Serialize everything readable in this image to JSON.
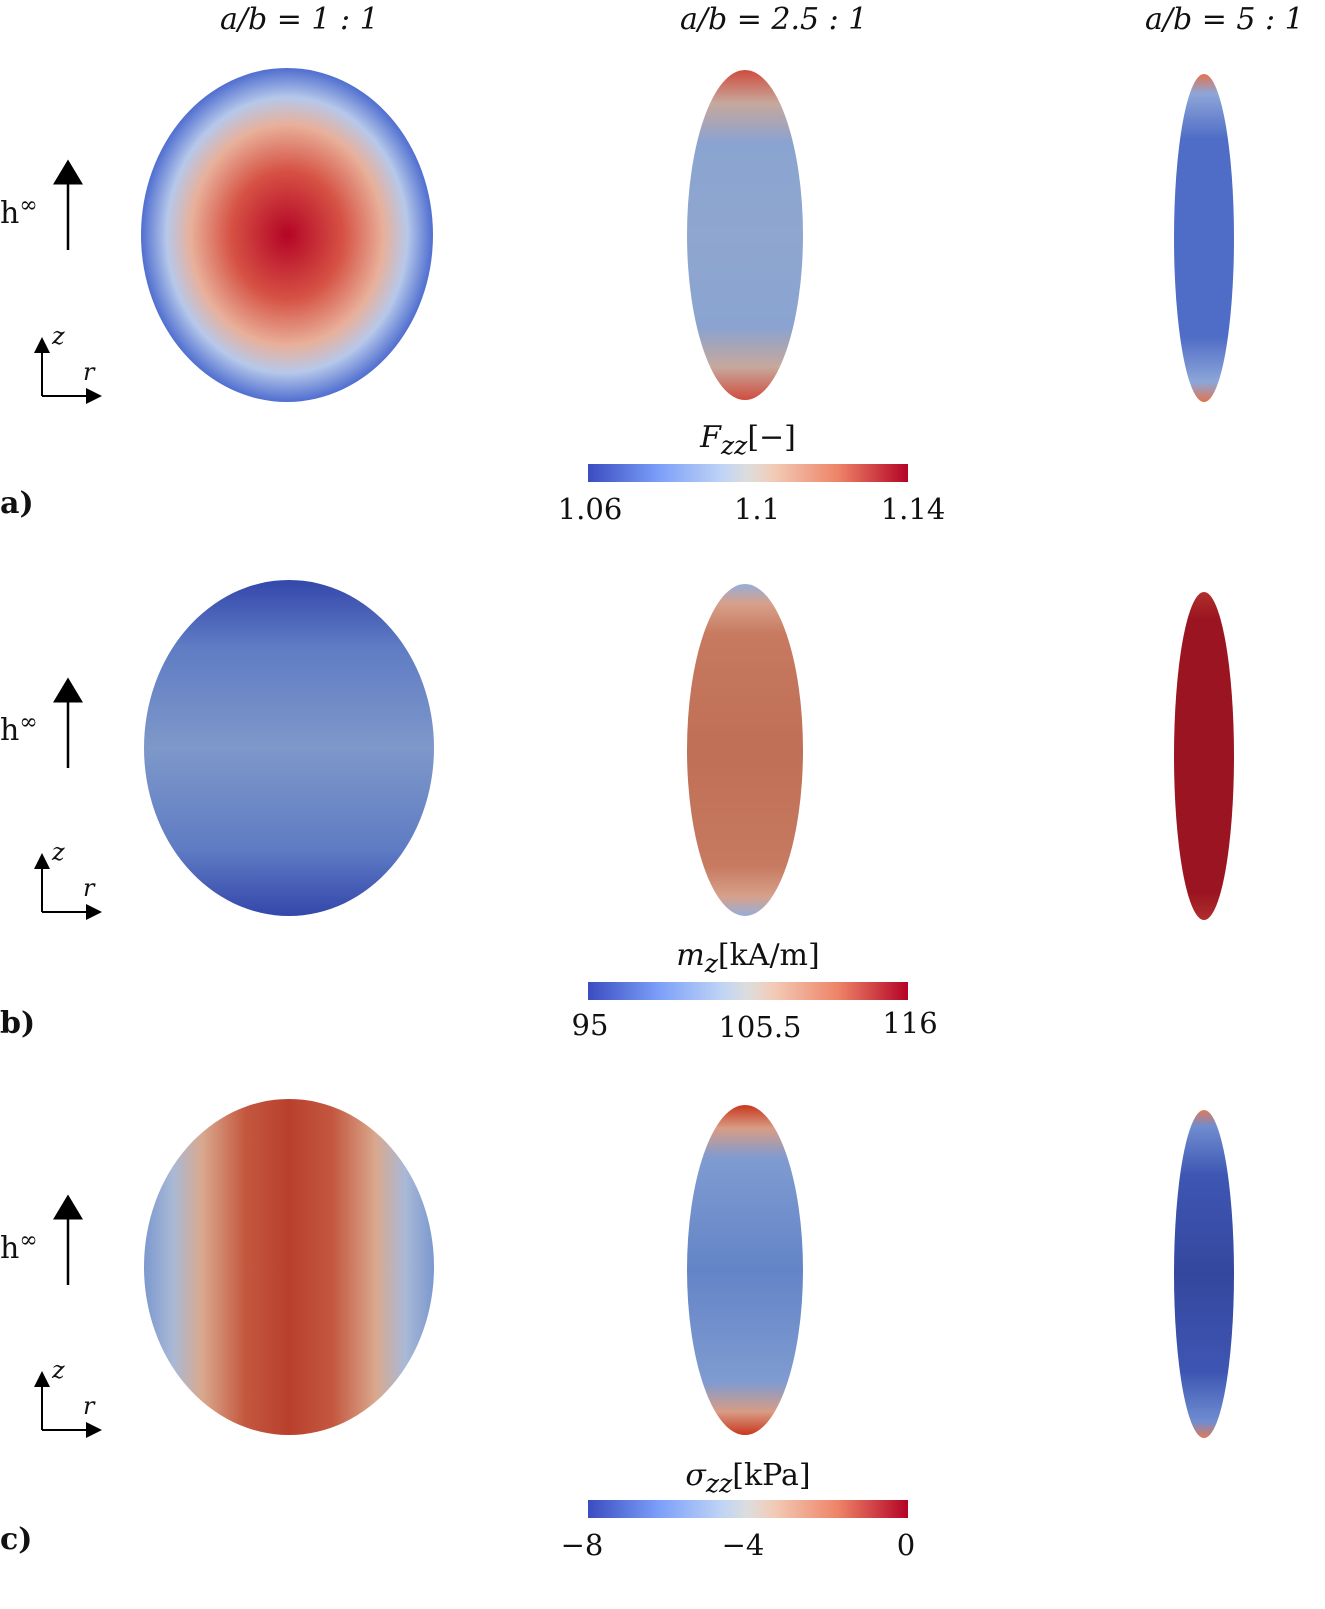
{
  "columns": [
    "a/b = 1 : 1",
    "a/b = 2.5 : 1",
    "a/b = 5 : 1"
  ],
  "field_label": "h",
  "field_superscript": "∞",
  "axis_z": "z",
  "axis_r": "r",
  "panels": [
    {
      "letter": "a)",
      "quantity": "F",
      "subscript": "zz",
      "unit": "[−]",
      "ticks": [
        "1.06",
        "1.1",
        "1.14"
      ]
    },
    {
      "letter": "b)",
      "quantity": "m",
      "subscript": "z",
      "unit": "[kA/m]",
      "ticks": [
        "95",
        "105.5",
        "116"
      ]
    },
    {
      "letter": "c)",
      "quantity": "σ",
      "subscript": "zz",
      "unit": "[kPa]",
      "ticks": [
        "−8",
        "−4",
        "0"
      ]
    }
  ],
  "colormap": {
    "low": "#3b4cc0",
    "mid": "#dddddd",
    "high": "#b40426"
  }
}
